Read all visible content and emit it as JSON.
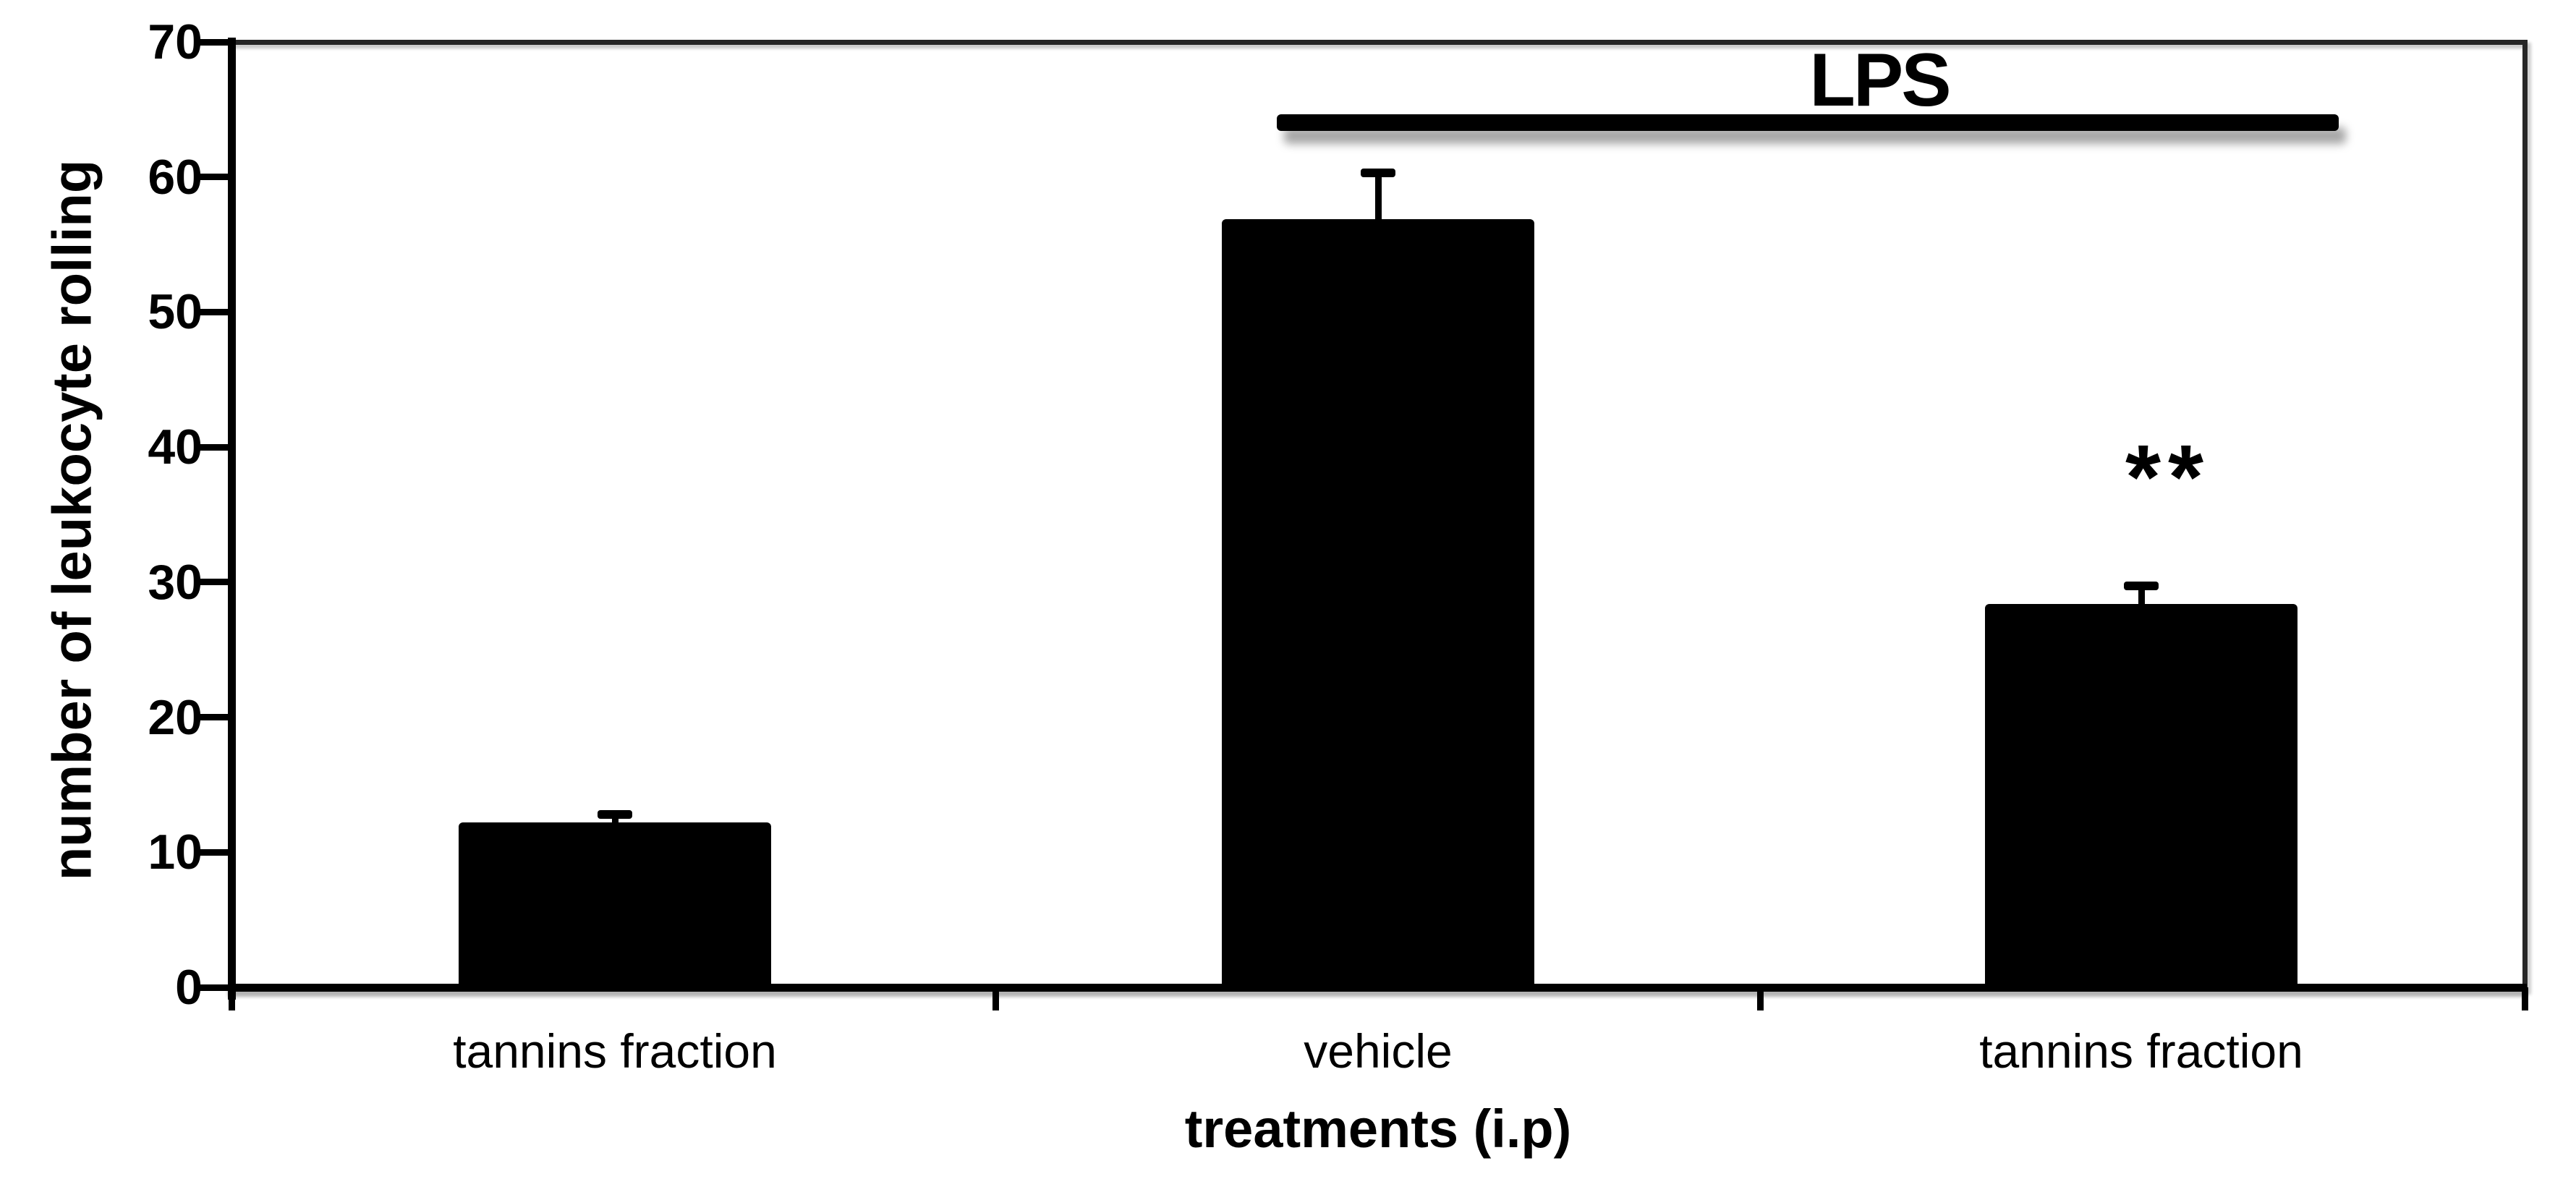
{
  "colors": {
    "background": "#ffffff",
    "ink": "#000000",
    "frame": "#262626",
    "bar_fill": "#000000"
  },
  "chart_data": {
    "type": "bar",
    "title": "",
    "categories": [
      "tannins fraction",
      "vehicle",
      "tannins fraction"
    ],
    "values": [
      12.2,
      56.9,
      28.4
    ],
    "error_up": [
      0.6,
      3.4,
      1.3
    ],
    "xlabel": "treatments (i.p)",
    "ylabel": "number of leukocyte rolling",
    "ylim": [
      0,
      70
    ],
    "yticks": [
      0,
      10,
      20,
      30,
      40,
      50,
      60,
      70
    ],
    "grid": false,
    "legend": null,
    "bar_color": "#000000",
    "annotations": {
      "group_line_label": "LPS",
      "group_line_covers": [
        "vehicle",
        "tannins fraction"
      ],
      "significance_label": "**",
      "significance_on_category_index": 2
    }
  }
}
